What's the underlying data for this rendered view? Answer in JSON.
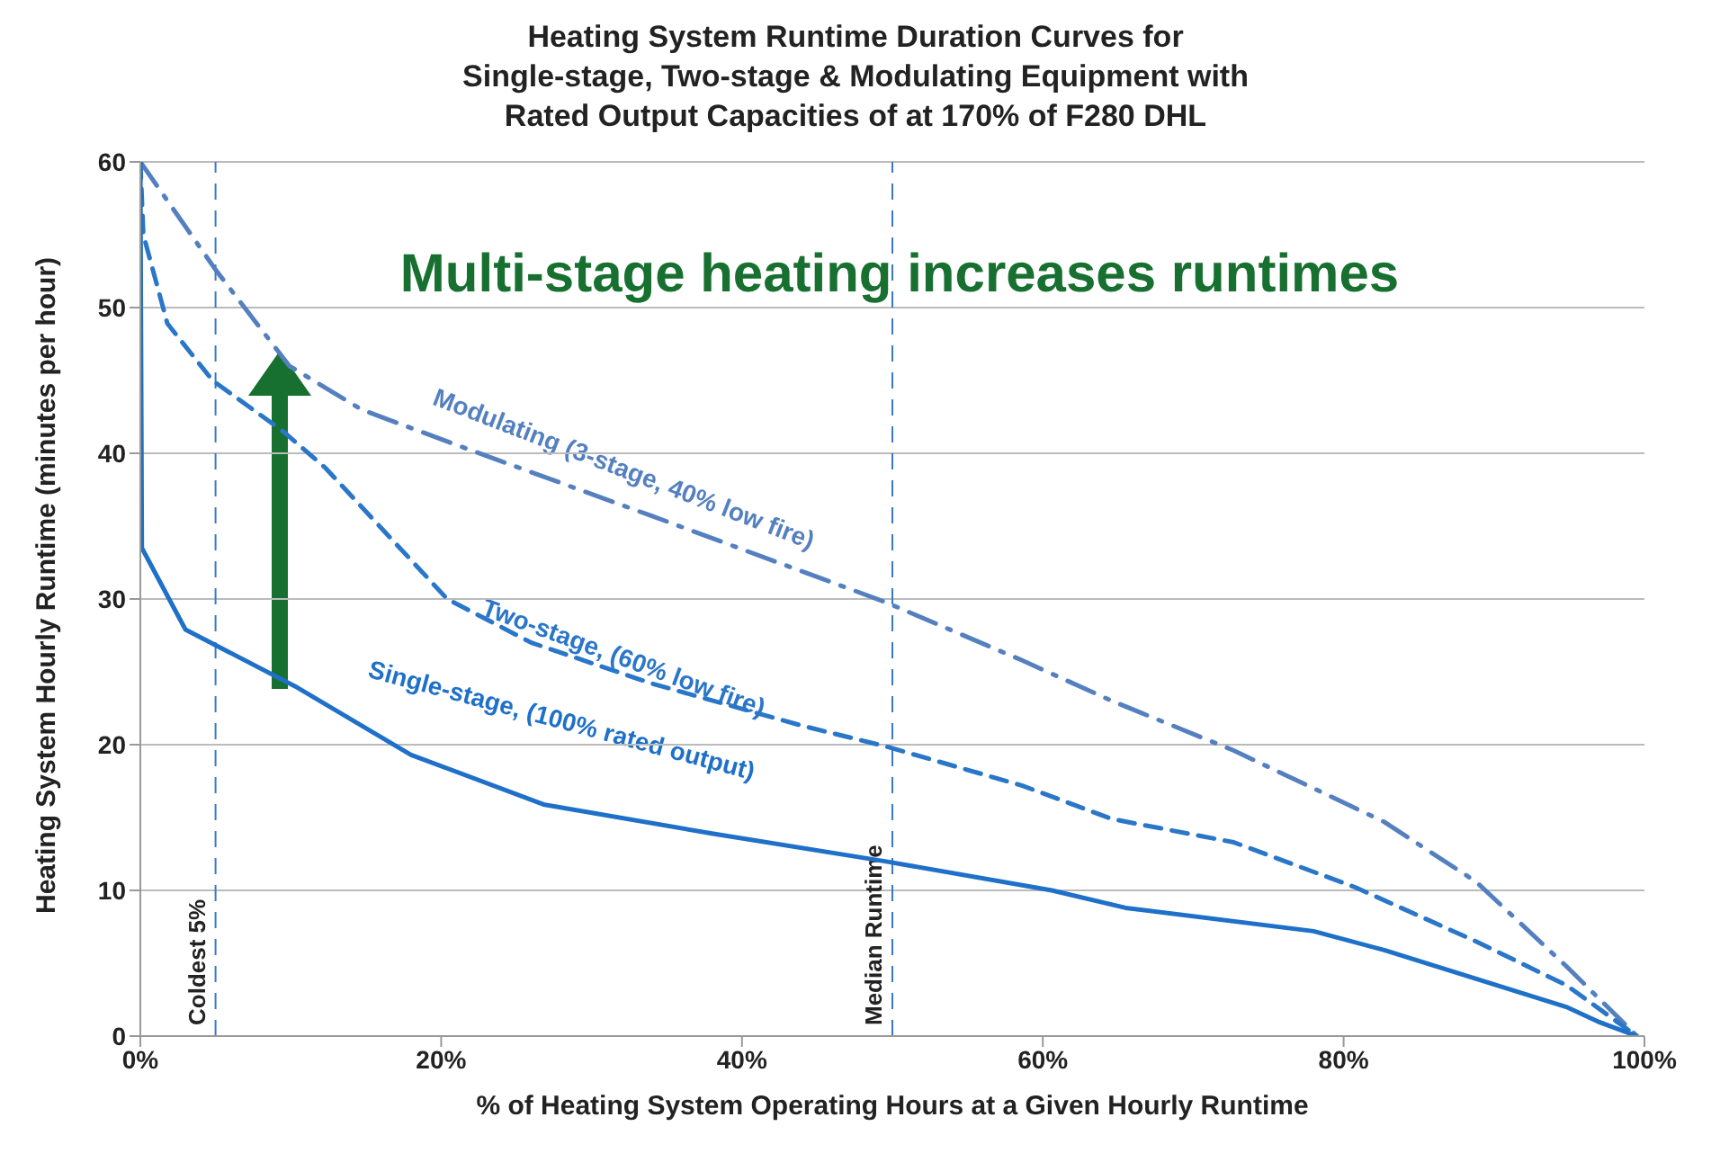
{
  "chart_data": {
    "type": "line",
    "title": "Heating System Runtime Duration Curves for\nSingle-stage, Two-stage & Modulating Equipment with\nRated Output Capacities of at 170% of F280 DHL",
    "xlabel": "% of Heating System Operating Hours at a Given Hourly Runtime",
    "ylabel": "Heating System Hourly Runtime  (minutes per hour)",
    "annotations": [
      "Multi-stage heating increases runtimes"
    ],
    "xlim": [
      0,
      100
    ],
    "ylim": [
      0,
      60
    ],
    "xticks": [
      {
        "value": 0,
        "label": "0%"
      },
      {
        "value": 20,
        "label": "20%"
      },
      {
        "value": 40,
        "label": "40%"
      },
      {
        "value": 60,
        "label": "60%"
      },
      {
        "value": 80,
        "label": "80%"
      },
      {
        "value": 100,
        "label": "100%"
      }
    ],
    "yticks": [
      0,
      10,
      20,
      30,
      40,
      50,
      60
    ],
    "grid": "y",
    "legend": false,
    "marker": "none",
    "ref_lines": [
      {
        "axis": "x",
        "value": 5,
        "label": "Coldest 5%",
        "color": "#3a78c8",
        "line_style": "dashed"
      },
      {
        "axis": "x",
        "value": 50,
        "label": "Median Runtime",
        "color": "#3a78c8",
        "line_style": "dashed"
      }
    ],
    "series": [
      {
        "name": "Modulating (3-stage, 40% low fire)",
        "color": "#5580c0",
        "line_style": "dashdot",
        "x": [
          0,
          5,
          9.9,
          14.7,
          22,
          34,
          49.5,
          58.6,
          64.6,
          72.7,
          82.7,
          88.8,
          94.8,
          99.5
        ],
        "values": [
          60,
          52.6,
          46,
          43,
          40.2,
          35.7,
          29.8,
          25.8,
          23,
          19.6,
          14.7,
          10.6,
          4.8,
          0
        ]
      },
      {
        "name": "Two-stage, (60% low fire)",
        "color": "#2a76c8",
        "line_style": "dashed",
        "x": [
          0,
          0.2,
          1.8,
          4.8,
          9.5,
          12.3,
          20.4,
          26,
          34,
          44,
          49.5,
          58.6,
          64.6,
          72.7,
          80.8,
          88.8,
          94.8,
          99.5
        ],
        "values": [
          60,
          55,
          48.9,
          45,
          41.5,
          39,
          30,
          27,
          24.2,
          21.3,
          19.9,
          17.2,
          14.9,
          13.3,
          10.2,
          6.5,
          3.5,
          0
        ]
      },
      {
        "name": "Single-stage, (100% rated output)",
        "color": "#1f70c8",
        "line_style": "solid",
        "x": [
          0,
          0.1,
          3,
          10.3,
          18,
          26.8,
          38,
          49.5,
          60.6,
          65.5,
          78,
          82.7,
          94.8,
          96.9,
          99.5
        ],
        "values": [
          60,
          33.5,
          27.9,
          24,
          19.3,
          15.9,
          13.9,
          12,
          10,
          8.8,
          7.2,
          5.9,
          2,
          1,
          0
        ]
      }
    ]
  }
}
